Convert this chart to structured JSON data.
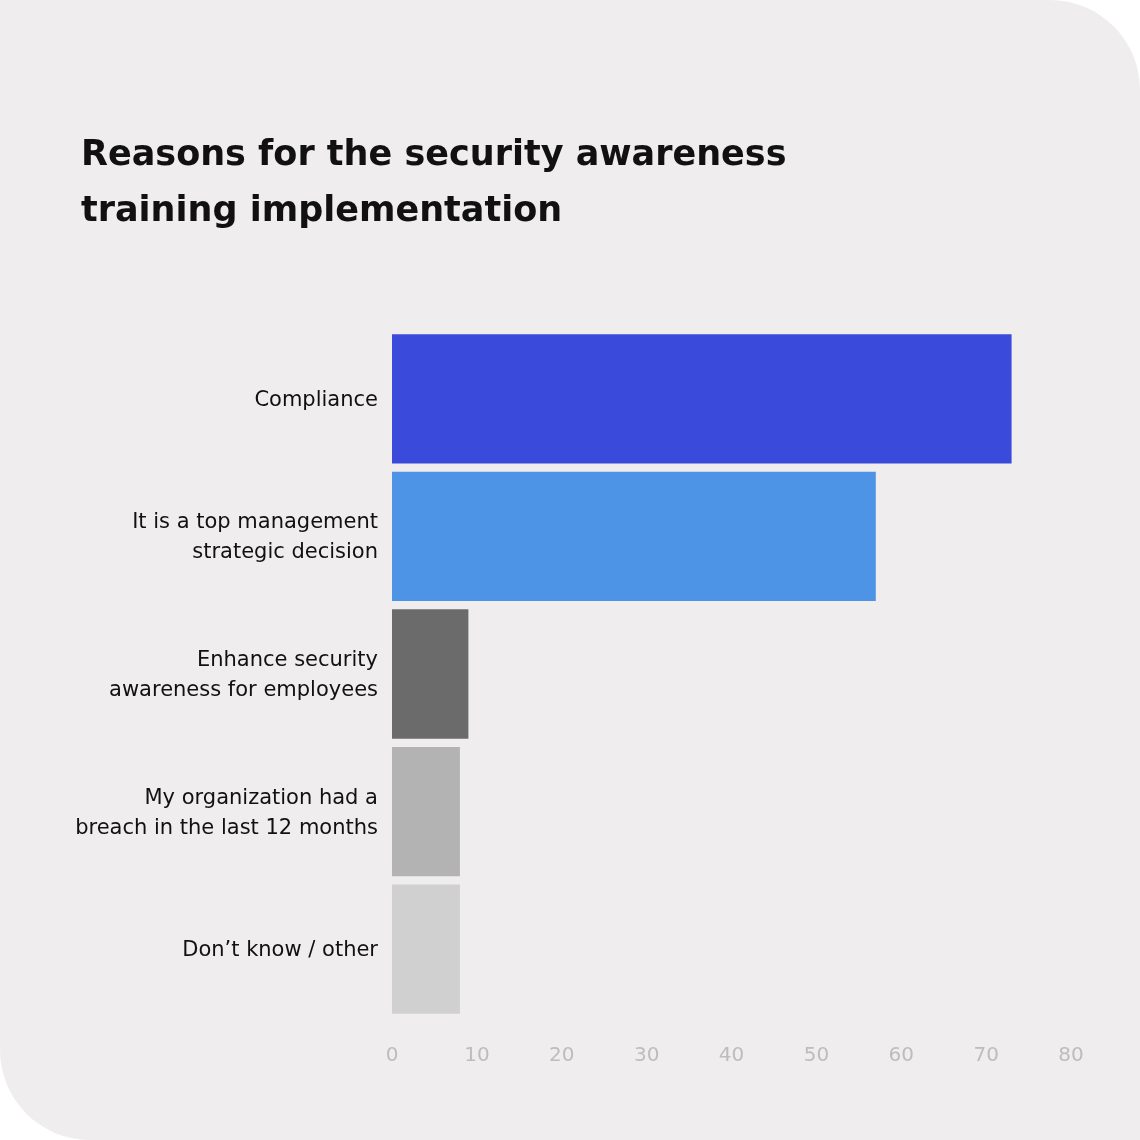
{
  "chart_data": {
    "type": "bar",
    "orientation": "horizontal",
    "title": "Reasons for the security awareness training implementation",
    "categories": [
      "Compliance",
      "It is a top management\nstrategic decision",
      "Enhance security\nawareness for employees",
      "My organization had a\nbreach in the last 12 months",
      "Don’t know / other"
    ],
    "values": [
      73,
      57,
      9,
      8,
      8
    ],
    "colors": [
      "#3a4adb",
      "#4d94e6",
      "#6b6b6b",
      "#b3b3b3",
      "#d0d0d0"
    ],
    "xlim": [
      0,
      80
    ],
    "xticks": [
      0,
      10,
      20,
      30,
      40,
      50,
      60,
      70,
      80
    ]
  }
}
